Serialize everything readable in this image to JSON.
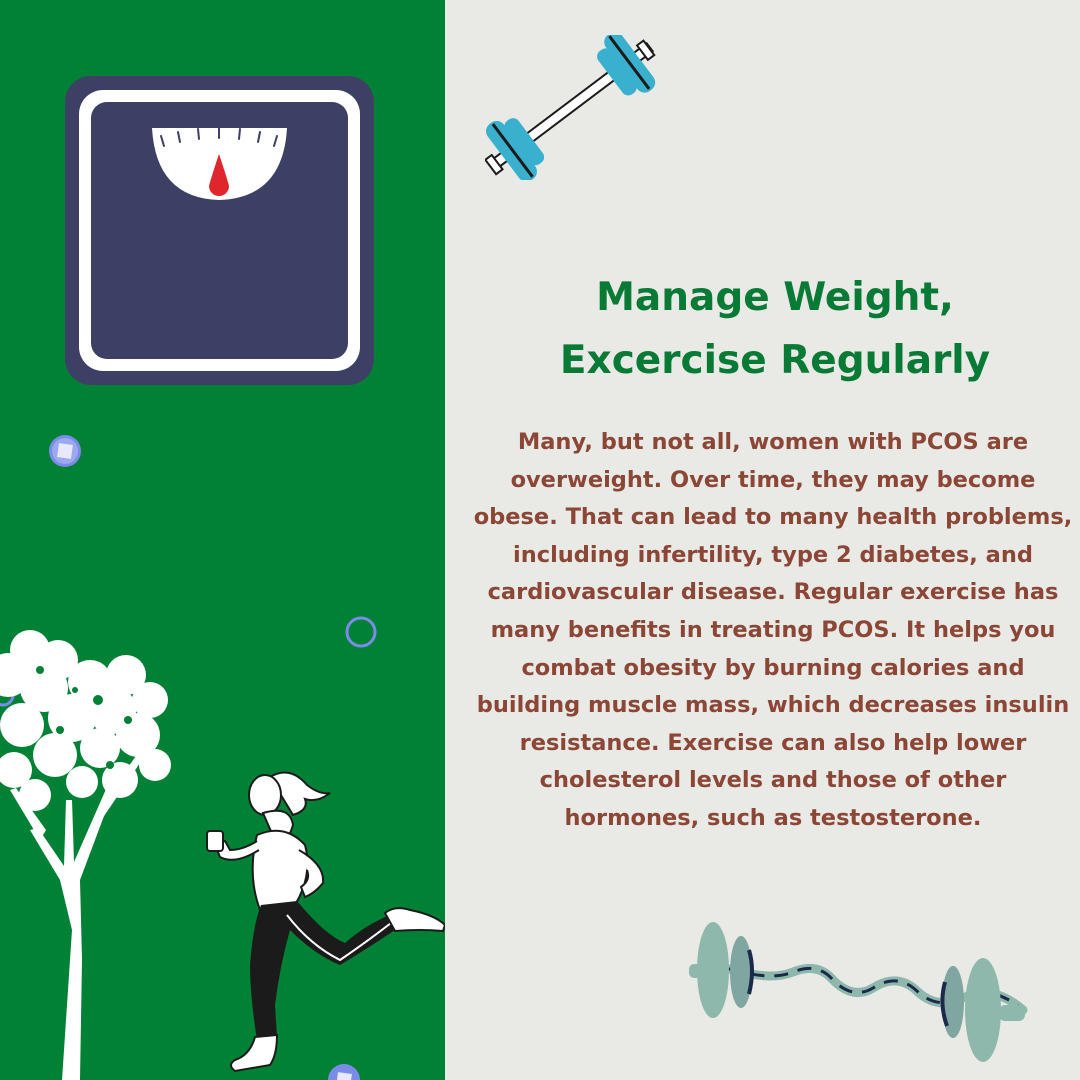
{
  "heading": {
    "line1": "Manage Weight,",
    "line2": "Excercise Regularly"
  },
  "body": {
    "paragraph": "Many, but not all, women with PCOS are overweight. Over time, they may become obese. That can lead to many health problems, including infertility, type 2 diabetes, and cardiovascular disease. Regular exercise has many benefits in treating PCOS. It helps you combat obesity by burning calories and building muscle mass, which decreases insulin resistance. Exercise can also help lower cholesterol levels and those of other hormones, such as testosterone."
  },
  "illustrations": {
    "scale": "bathroom-scale-icon",
    "tree": "tree-icon",
    "runner": "woman-running-icon",
    "dumbbell_top": "dumbbell-icon",
    "dumbbell_bottom": "curl-bar-icon"
  },
  "colors": {
    "left_background": "#008135",
    "right_background": "#e9e9e6",
    "heading": "#077a35",
    "body_text": "#8c4636",
    "scale_body": "#3d3f64",
    "scale_needle": "#e0262d",
    "dumbbell_top": "#3ab0cf",
    "dumbbell_bottom": "#8fb8ad",
    "accent_dot": "#7b8ce8"
  }
}
